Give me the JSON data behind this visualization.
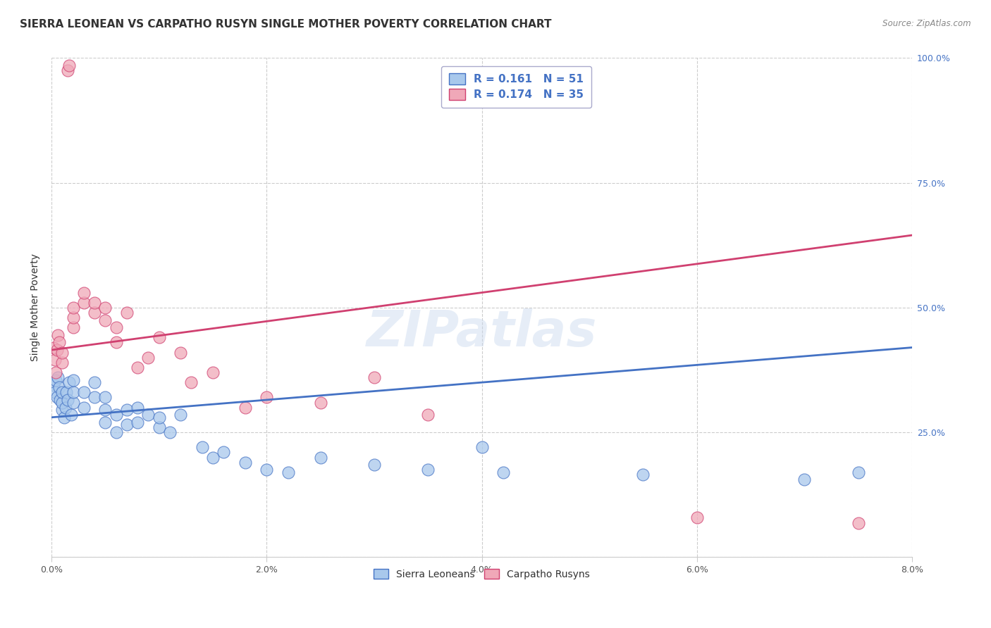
{
  "title": "SIERRA LEONEAN VS CARPATHO RUSYN SINGLE MOTHER POVERTY CORRELATION CHART",
  "source": "Source: ZipAtlas.com",
  "ylabel": "Single Mother Poverty",
  "x_min": 0.0,
  "x_max": 0.08,
  "y_min": 0.0,
  "y_max": 1.0,
  "x_ticks": [
    0.0,
    0.02,
    0.04,
    0.06,
    0.08
  ],
  "x_tick_labels": [
    "0.0%",
    "2.0%",
    "4.0%",
    "6.0%",
    "8.0%"
  ],
  "y_ticks": [
    0.0,
    0.25,
    0.5,
    0.75,
    1.0
  ],
  "y_tick_labels_right": [
    "",
    "25.0%",
    "50.0%",
    "75.0%",
    "100.0%"
  ],
  "sierra_color": "#A8C8EC",
  "carpatho_color": "#F0A8B8",
  "sierra_line_color": "#4472C4",
  "carpatho_line_color": "#D04070",
  "sierra_R": 0.161,
  "sierra_N": 51,
  "carpatho_R": 0.174,
  "carpatho_N": 35,
  "sierra_line_x": [
    0.0,
    0.08
  ],
  "sierra_line_y": [
    0.28,
    0.42
  ],
  "carpatho_line_x": [
    0.0,
    0.08
  ],
  "carpatho_line_y": [
    0.415,
    0.645
  ],
  "sierra_scatter_x": [
    0.0002,
    0.0003,
    0.0004,
    0.0005,
    0.0006,
    0.0007,
    0.0008,
    0.001,
    0.001,
    0.001,
    0.0012,
    0.0013,
    0.0014,
    0.0015,
    0.0016,
    0.0018,
    0.002,
    0.002,
    0.002,
    0.003,
    0.003,
    0.004,
    0.004,
    0.005,
    0.005,
    0.005,
    0.006,
    0.006,
    0.007,
    0.007,
    0.008,
    0.008,
    0.009,
    0.01,
    0.01,
    0.011,
    0.012,
    0.014,
    0.015,
    0.016,
    0.018,
    0.02,
    0.022,
    0.025,
    0.03,
    0.035,
    0.04,
    0.042,
    0.055,
    0.07,
    0.075
  ],
  "sierra_scatter_y": [
    0.345,
    0.33,
    0.355,
    0.32,
    0.36,
    0.34,
    0.315,
    0.295,
    0.31,
    0.33,
    0.28,
    0.3,
    0.33,
    0.315,
    0.35,
    0.285,
    0.31,
    0.33,
    0.355,
    0.3,
    0.33,
    0.32,
    0.35,
    0.27,
    0.295,
    0.32,
    0.25,
    0.285,
    0.265,
    0.295,
    0.27,
    0.3,
    0.285,
    0.26,
    0.28,
    0.25,
    0.285,
    0.22,
    0.2,
    0.21,
    0.19,
    0.175,
    0.17,
    0.2,
    0.185,
    0.175,
    0.22,
    0.17,
    0.165,
    0.155,
    0.17
  ],
  "carpatho_scatter_x": [
    0.0002,
    0.0003,
    0.0004,
    0.0005,
    0.0006,
    0.0007,
    0.001,
    0.001,
    0.0015,
    0.0016,
    0.002,
    0.002,
    0.002,
    0.003,
    0.003,
    0.004,
    0.004,
    0.005,
    0.005,
    0.006,
    0.006,
    0.007,
    0.008,
    0.009,
    0.01,
    0.012,
    0.013,
    0.015,
    0.018,
    0.02,
    0.025,
    0.03,
    0.035,
    0.06,
    0.075
  ],
  "carpatho_scatter_y": [
    0.42,
    0.395,
    0.37,
    0.415,
    0.445,
    0.43,
    0.39,
    0.41,
    0.975,
    0.985,
    0.46,
    0.48,
    0.5,
    0.51,
    0.53,
    0.49,
    0.51,
    0.475,
    0.5,
    0.43,
    0.46,
    0.49,
    0.38,
    0.4,
    0.44,
    0.41,
    0.35,
    0.37,
    0.3,
    0.32,
    0.31,
    0.36,
    0.285,
    0.08,
    0.068
  ],
  "watermark": "ZIPatlas",
  "title_fontsize": 11,
  "axis_label_fontsize": 10,
  "tick_fontsize": 9,
  "legend_fontsize": 11
}
